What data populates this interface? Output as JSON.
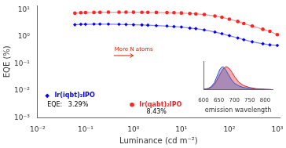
{
  "chart_data": [
    {
      "type": "line",
      "xlabel": "Luminance (cd m⁻²)",
      "ylabel": "EQE (%)",
      "log": true,
      "xlim": [
        0.01,
        1122.018454301963
      ],
      "xticks": [
        {
          "value": 0.01,
          "label": "10⁻²"
        },
        {
          "value": 0.1,
          "label": "10⁻¹"
        },
        {
          "value": 1,
          "label": "10⁰"
        },
        {
          "value": 10,
          "label": "10¹"
        },
        {
          "value": 100,
          "label": "10²"
        },
        {
          "value": 1000,
          "label": "10³"
        }
      ],
      "ylim": [
        0.001,
        14.12537544622754
      ],
      "yticks": [
        {
          "value": 0.001,
          "label": "10⁻³"
        },
        {
          "value": 0.01,
          "label": "10⁻²"
        },
        {
          "value": 0.1,
          "label": "10⁻¹"
        },
        {
          "value": 1,
          "label": "10⁰"
        },
        {
          "value": 10,
          "label": "10¹"
        }
      ],
      "grid": false,
      "legend": "lower left",
      "x": [
        0.06,
        0.08,
        0.1,
        0.15,
        0.2,
        0.3,
        0.5,
        0.7,
        1.0,
        1.5,
        2.0,
        3.0,
        5.0,
        7.0,
        10.0,
        15.0,
        20.0,
        30.0,
        50.0,
        70.0,
        100.0,
        150.0,
        200.0,
        300.0,
        500.0,
        700.0,
        1000.0
      ],
      "series": [
        {
          "name": "Ir(iqbt)₂IPO",
          "color": "#0000ff",
          "marker": "diamond",
          "values": [
            2.8,
            2.9,
            2.9,
            2.95,
            2.95,
            2.95,
            2.9,
            2.85,
            2.8,
            2.75,
            2.7,
            2.6,
            2.5,
            2.4,
            2.3,
            2.1,
            2.0,
            1.8,
            1.5,
            1.3,
            1.1,
            0.9,
            0.78,
            0.65,
            0.55,
            0.5,
            0.48
          ]
        },
        {
          "name": "Ir(qabt)₂IPO",
          "color": "#ff2222",
          "marker": "circle",
          "values": [
            7.5,
            7.8,
            7.9,
            8.0,
            8.1,
            8.2,
            8.2,
            8.2,
            8.15,
            8.1,
            8.05,
            8.0,
            7.9,
            7.8,
            7.6,
            7.3,
            7.1,
            6.7,
            5.9,
            5.3,
            4.5,
            3.7,
            3.1,
            2.5,
            1.9,
            1.6,
            1.2
          ]
        }
      ],
      "annotations": [
        {
          "text": "EQE:   3.29%"
        },
        {
          "text": "8.43%"
        },
        {
          "text": "More N atoms",
          "color": "#cc2200"
        }
      ]
    },
    {
      "type": "area",
      "xlabel": "emission wavelength",
      "xlim": [
        600,
        825
      ],
      "xticks": [
        600,
        650,
        700,
        750,
        800
      ],
      "ylim": [
        0,
        1.25
      ],
      "tick_labels": "x",
      "grid": false,
      "series": [
        {
          "color": "#3355cc",
          "x": [
            600,
            615,
            625,
            635,
            642,
            648,
            653,
            658,
            663,
            668,
            673,
            680,
            690,
            700,
            715,
            730,
            750,
            770,
            800,
            820
          ],
          "values": [
            0.01,
            0.05,
            0.13,
            0.3,
            0.52,
            0.72,
            0.88,
            0.97,
            1.0,
            0.95,
            0.85,
            0.68,
            0.45,
            0.28,
            0.16,
            0.09,
            0.05,
            0.03,
            0.01,
            0.0
          ]
        },
        {
          "color": "#dd2222",
          "x": [
            600,
            615,
            625,
            635,
            642,
            650,
            658,
            665,
            672,
            678,
            685,
            693,
            702,
            715,
            730,
            750,
            770,
            800,
            820
          ],
          "values": [
            0.01,
            0.04,
            0.1,
            0.22,
            0.38,
            0.58,
            0.78,
            0.93,
            1.0,
            0.98,
            0.9,
            0.75,
            0.55,
            0.32,
            0.18,
            0.09,
            0.04,
            0.01,
            0.0
          ]
        }
      ]
    }
  ]
}
